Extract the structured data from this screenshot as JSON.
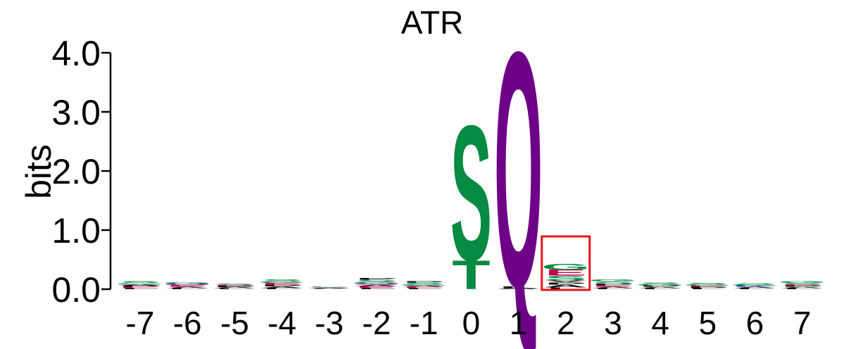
{
  "chart_data": {
    "type": "sequence-logo",
    "title": "ATR",
    "ylabel": "bits",
    "ylim": [
      0,
      4
    ],
    "yticks": [
      "0.0",
      "1.0",
      "2.0",
      "3.0",
      "4.0"
    ],
    "positions": [
      "-7",
      "-6",
      "-5",
      "-4",
      "-3",
      "-2",
      "-1",
      "0",
      "1",
      "2",
      "3",
      "4",
      "5",
      "6",
      "7"
    ],
    "highlight_position": "2",
    "highlight_color": "#e8141c",
    "colors": {
      "S": "#078a41",
      "T": "#078a41",
      "G": "#078a41",
      "Q": "#6e0087",
      "N": "#6e0087",
      "E": "#c8004a",
      "D": "#c8004a",
      "K": "#1f3fb8",
      "R": "#1f3fb8",
      "L": "#111111",
      "A": "#111111",
      "P": "#111111",
      "V": "#111111",
      "M": "#111111",
      "I": "#111111"
    },
    "stacks": [
      [
        [
          "L",
          0.02
        ],
        [
          "E",
          0.02
        ],
        [
          "P",
          0.02
        ],
        [
          "A",
          0.02
        ],
        [
          "G",
          0.025
        ],
        [
          "S",
          0.03
        ]
      ],
      [
        [
          "L",
          0.02
        ],
        [
          "A",
          0.02
        ],
        [
          "E",
          0.03
        ],
        [
          "Q",
          0.02
        ],
        [
          "G",
          0.03
        ]
      ],
      [
        [
          "L",
          0.015
        ],
        [
          "A",
          0.02
        ],
        [
          "P",
          0.02
        ],
        [
          "E",
          0.015
        ],
        [
          "S",
          0.025
        ]
      ],
      [
        [
          "L",
          0.02
        ],
        [
          "A",
          0.03
        ],
        [
          "P",
          0.02
        ],
        [
          "E",
          0.04
        ],
        [
          "G",
          0.02
        ],
        [
          "S",
          0.04
        ]
      ],
      [
        [
          "L",
          0.01
        ],
        [
          "A",
          0.015
        ],
        [
          "S",
          0.01
        ],
        [
          "P",
          0.01
        ]
      ],
      [
        [
          "L",
          0.02
        ],
        [
          "E",
          0.03
        ],
        [
          "A",
          0.03
        ],
        [
          "Q",
          0.02
        ],
        [
          "G",
          0.025
        ],
        [
          "S",
          0.035
        ],
        [
          "P",
          0.03
        ]
      ],
      [
        [
          "L",
          0.02
        ],
        [
          "E",
          0.02
        ],
        [
          "A",
          0.02
        ],
        [
          "G",
          0.025
        ],
        [
          "S",
          0.03
        ],
        [
          "P",
          0.02
        ]
      ],
      [
        [
          "T",
          0.5
        ],
        [
          "S",
          2.35
        ]
      ],
      [
        [
          "A",
          0.02
        ],
        [
          "L",
          0.03
        ],
        [
          "Q",
          4.1
        ]
      ],
      [
        [
          "L",
          0.03
        ],
        [
          "A",
          0.05
        ],
        [
          "P",
          0.04
        ],
        [
          "V",
          0.03
        ],
        [
          "S",
          0.08
        ],
        [
          "E",
          0.1
        ],
        [
          "G",
          0.1
        ]
      ],
      [
        [
          "L",
          0.02
        ],
        [
          "A",
          0.02
        ],
        [
          "E",
          0.03
        ],
        [
          "P",
          0.02
        ],
        [
          "S",
          0.04
        ],
        [
          "G",
          0.035
        ]
      ],
      [
        [
          "L",
          0.02
        ],
        [
          "A",
          0.02
        ],
        [
          "P",
          0.02
        ],
        [
          "G",
          0.03
        ],
        [
          "S",
          0.025
        ]
      ],
      [
        [
          "L",
          0.02
        ],
        [
          "P",
          0.02
        ],
        [
          "E",
          0.02
        ],
        [
          "G",
          0.025
        ],
        [
          "S",
          0.02
        ]
      ],
      [
        [
          "L",
          0.02
        ],
        [
          "A",
          0.02
        ],
        [
          "K",
          0.02
        ],
        [
          "G",
          0.02
        ],
        [
          "S",
          0.02
        ]
      ],
      [
        [
          "L",
          0.02
        ],
        [
          "A",
          0.02
        ],
        [
          "P",
          0.02
        ],
        [
          "E",
          0.02
        ],
        [
          "S",
          0.03
        ],
        [
          "G",
          0.03
        ]
      ]
    ]
  }
}
